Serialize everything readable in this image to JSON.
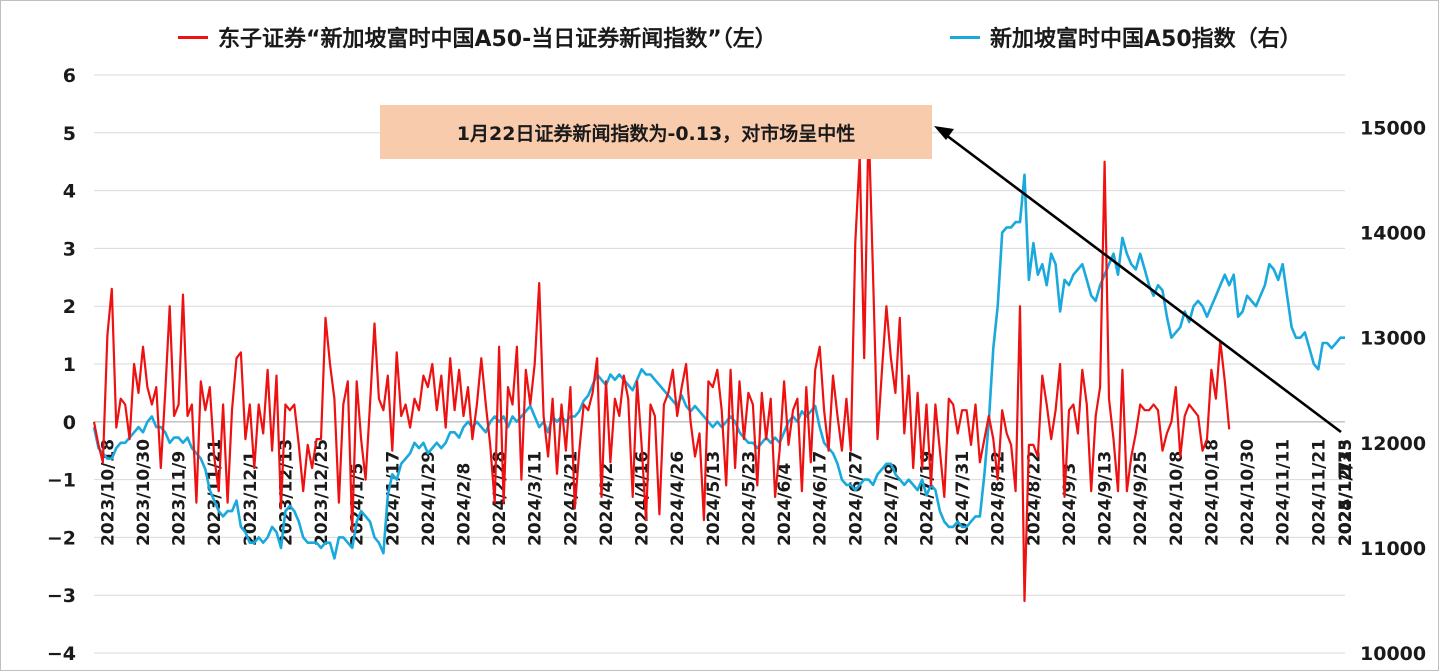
{
  "legend": {
    "left_series_label": "东子证券“新加坡富时中国A50-当日证券新闻指数”（左）",
    "right_series_label": "新加坡富时中国A50指数（右）"
  },
  "annotation": {
    "text": "1月22日证券新闻指数为-0.13，对市场呈中性"
  },
  "colors": {
    "news_index": "#ee1111",
    "a50_index": "#1aa9dd",
    "grid": "#d9d9d9",
    "callout_bg": "#f8cbad",
    "arrow": "#000000"
  },
  "chart_data": {
    "type": "line",
    "title": "",
    "xlabel": "",
    "y_left": {
      "min": -4,
      "max": 6,
      "ticks": [
        -4,
        -3,
        -2,
        -1,
        0,
        1,
        2,
        3,
        4,
        5,
        6
      ]
    },
    "y_right": {
      "min": 10000,
      "max": 15500,
      "ticks": [
        10000,
        11000,
        12000,
        13000,
        14000,
        15000
      ]
    },
    "grid": true,
    "legend_position": "top",
    "x_tick_labels": [
      "2023/10/18",
      "2023/10/30",
      "2023/11/9",
      "2023/11/21",
      "2023/12/1",
      "2023/12/13",
      "2023/12/25",
      "2024/1/5",
      "2024/1/17",
      "2024/1/29",
      "2024/2/8",
      "2024/2/28",
      "2024/3/11",
      "2024/3/21",
      "2024/4/2",
      "2024/4/16",
      "2024/4/26",
      "2024/5/13",
      "2024/5/23",
      "2024/6/4",
      "2024/6/17",
      "2024/6/27",
      "2024/7/9",
      "2024/7/19",
      "2024/7/31",
      "2024/8/12",
      "2024/8/22",
      "2024/9/3",
      "2024/9/13",
      "2024/9/25",
      "2024/10/8",
      "2024/10/18",
      "2024/10/30",
      "2024/11/11",
      "2024/11/21",
      "2024/12/3",
      "2024/12/13",
      "2024/12/25",
      "2025/1/7",
      "2025/1/17"
    ],
    "tick_every_n_points": 8,
    "series": [
      {
        "name": "东子证券“新加坡富时中国A50-当日证券新闻指数”（左）",
        "axis": "left",
        "values": [
          0.0,
          -0.4,
          -0.7,
          1.5,
          2.3,
          -0.1,
          0.4,
          0.3,
          -0.3,
          1.0,
          0.5,
          1.3,
          0.6,
          0.3,
          0.6,
          -0.8,
          0.5,
          2.0,
          0.1,
          0.3,
          2.2,
          0.1,
          0.3,
          -1.4,
          0.7,
          0.2,
          0.6,
          -0.6,
          -1.2,
          0.3,
          -1.4,
          0.2,
          1.1,
          1.2,
          -0.3,
          0.3,
          -0.8,
          0.3,
          -0.2,
          0.9,
          -0.5,
          0.8,
          -1.5,
          0.3,
          0.2,
          0.3,
          -0.4,
          -1.2,
          -0.4,
          -0.8,
          -0.3,
          -0.3,
          1.8,
          1.0,
          0.4,
          -1.4,
          0.3,
          0.7,
          -1.9,
          0.7,
          -0.3,
          -1.0,
          0.3,
          1.7,
          0.4,
          0.2,
          0.8,
          -0.5,
          1.2,
          0.1,
          0.3,
          -0.1,
          0.4,
          0.2,
          0.8,
          0.6,
          1.0,
          0.2,
          0.8,
          -0.1,
          1.1,
          0.2,
          0.9,
          0.1,
          0.6,
          -0.3,
          0.3,
          1.1,
          0.3,
          -0.4,
          -1.4,
          1.3,
          -1.4,
          0.6,
          0.3,
          1.3,
          -1.0,
          0.9,
          0.3,
          1.0,
          2.4,
          0.1,
          -0.6,
          0.4,
          -0.9,
          0.3,
          -0.5,
          0.6,
          -1.5,
          -0.5,
          0.3,
          0.2,
          0.5,
          1.1,
          -1.3,
          0.7,
          -0.7,
          0.4,
          0.1,
          0.8,
          0.4,
          -1.3,
          0.7,
          -0.4,
          -1.7,
          0.3,
          0.1,
          -1.6,
          0.3,
          0.5,
          0.9,
          0.1,
          0.6,
          1.0,
          0.0,
          -0.6,
          -0.2,
          -1.7,
          0.7,
          0.6,
          0.9,
          0.2,
          -1.1,
          0.9,
          -0.8,
          0.7,
          -0.3,
          0.5,
          0.3,
          -1.1,
          0.5,
          -0.3,
          0.4,
          -1.3,
          -0.5,
          0.7,
          -0.4,
          0.2,
          0.4,
          -1.2,
          0.6,
          -0.7,
          0.9,
          1.3,
          0.2,
          -0.5,
          0.8,
          0.1,
          -0.5,
          0.4,
          -0.5,
          3.1,
          4.6,
          1.1,
          5.2,
          2.5,
          -0.3,
          0.9,
          2.0,
          1.1,
          0.5,
          1.8,
          -0.2,
          0.8,
          -0.8,
          0.5,
          -0.8,
          0.3,
          -1.1,
          0.3,
          -0.5,
          -1.3,
          0.4,
          0.3,
          -0.2,
          0.2,
          0.2,
          -0.4,
          0.3,
          -0.7,
          -0.3,
          0.1,
          -0.3,
          -1.0,
          0.2,
          -0.2,
          -0.4,
          -1.2,
          2.0,
          -3.1,
          -0.4,
          -0.4,
          -0.6,
          0.8,
          0.3,
          -0.3,
          0.2,
          1.0,
          -1.3,
          0.2,
          0.3,
          -0.2,
          0.9,
          0.3,
          -1.2,
          0.1,
          0.6,
          4.5,
          0.4,
          -0.3,
          -1.2,
          0.9,
          -1.2,
          -0.6,
          -0.2,
          0.3,
          0.2,
          0.2,
          0.3,
          0.2,
          -0.5,
          -0.2,
          0.0,
          0.6,
          -0.6,
          0.1,
          0.3,
          0.2,
          0.1,
          -0.5,
          -0.3,
          0.9,
          0.4,
          1.4,
          0.7,
          -0.13
        ]
      },
      {
        "name": "新加坡富时中国A50指数（右）",
        "axis": "right",
        "values": [
          12150,
          11950,
          11900,
          11850,
          11850,
          11950,
          12000,
          12000,
          12050,
          12100,
          12150,
          12100,
          12200,
          12250,
          12150,
          12150,
          12100,
          12000,
          12050,
          12050,
          12000,
          12050,
          11950,
          11900,
          11850,
          11750,
          11550,
          11450,
          11350,
          11300,
          11350,
          11350,
          11450,
          11200,
          11150,
          11050,
          11050,
          11100,
          11050,
          11100,
          11200,
          11150,
          11000,
          11350,
          11400,
          11350,
          11250,
          11100,
          11050,
          11050,
          11050,
          11000,
          11050,
          11050,
          10900,
          11100,
          11100,
          11050,
          11000,
          11250,
          11350,
          11300,
          11250,
          11100,
          11050,
          10950,
          11500,
          11700,
          11650,
          11800,
          11850,
          11900,
          12000,
          11950,
          12000,
          11900,
          11950,
          12000,
          11950,
          12000,
          12100,
          12100,
          12050,
          12150,
          12200,
          12150,
          12200,
          12150,
          12100,
          12200,
          12250,
          12200,
          12250,
          12150,
          12250,
          12200,
          12250,
          12300,
          12350,
          12250,
          12150,
          12200,
          12100,
          12250,
          12200,
          12250,
          12200,
          12250,
          12250,
          12300,
          12400,
          12450,
          12550,
          12650,
          12600,
          12550,
          12650,
          12600,
          12650,
          12600,
          12550,
          12500,
          12600,
          12700,
          12650,
          12650,
          12600,
          12550,
          12500,
          12450,
          12400,
          12350,
          12450,
          12350,
          12300,
          12350,
          12300,
          12250,
          12200,
          12150,
          12200,
          12150,
          12200,
          12250,
          12200,
          12100,
          12050,
          12000,
          12000,
          11950,
          12000,
          12050,
          12000,
          12050,
          12000,
          12100,
          12200,
          12250,
          12200,
          12300,
          12250,
          12300,
          12350,
          12150,
          12000,
          11950,
          11900,
          11800,
          11650,
          11600,
          11600,
          11550,
          11600,
          11650,
          11650,
          11600,
          11700,
          11750,
          11800,
          11800,
          11700,
          11650,
          11600,
          11650,
          11600,
          11550,
          11650,
          11500,
          11600,
          11550,
          11350,
          11250,
          11200,
          11200,
          11250,
          11200,
          11200,
          11250,
          11300,
          11300,
          11700,
          12200,
          12900,
          13300,
          14000,
          14050,
          14050,
          14100,
          14100,
          14550,
          13550,
          13900,
          13600,
          13700,
          13500,
          13800,
          13700,
          13250,
          13550,
          13500,
          13600,
          13650,
          13700,
          13550,
          13400,
          13350,
          13500,
          13600,
          13700,
          13800,
          13600,
          13950,
          13800,
          13700,
          13650,
          13800,
          13650,
          13500,
          13400,
          13500,
          13450,
          13200,
          13000,
          13050,
          13100,
          13250,
          13150,
          13300,
          13350,
          13300,
          13200,
          13300,
          13400,
          13500,
          13600,
          13500,
          13600,
          13200,
          13250,
          13400,
          13350,
          13300,
          13400,
          13500,
          13700,
          13650,
          13550,
          13700,
          13400,
          13100,
          13000,
          13000,
          13050,
          12900,
          12750,
          12700,
          12950,
          12950,
          12900,
          12950,
          13000,
          13000
        ]
      }
    ]
  }
}
